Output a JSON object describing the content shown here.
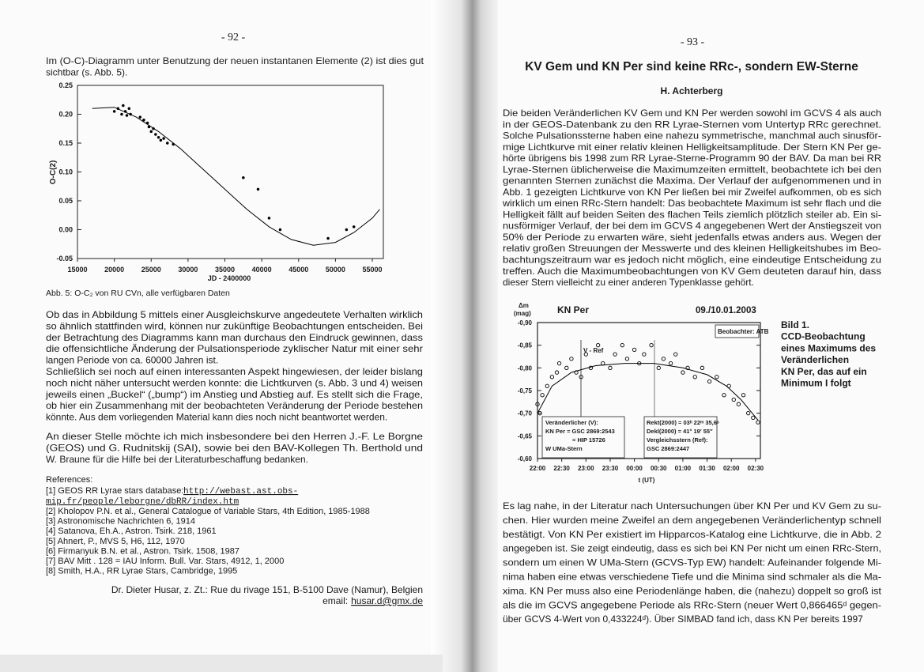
{
  "left_page": {
    "page_number": "- 92 -",
    "intro": [
      "Im (O-C)-Diagramm unter Benutzung der neuen instantanen Elemente (2) ist dies gut",
      "sichtbar (s. Abb. 5)."
    ],
    "figure": {
      "type": "scatter",
      "x_label": "JD - 2400000",
      "y_label": "O-C(2)",
      "xlim": [
        15000,
        56500
      ],
      "ylim": [
        -0.05,
        0.25
      ],
      "xticks": [
        15000,
        20000,
        25000,
        30000,
        35000,
        40000,
        45000,
        50000,
        55000
      ],
      "yticks": [
        0.25,
        {
          "value": 0.2,
          "label": "0.20"
        },
        0.15,
        {
          "value": 0.1,
          "label": "0.10"
        },
        0.05,
        {
          "value": 0,
          "label": "0.00"
        },
        -0.05
      ],
      "points": {
        "x": [
          20000,
          20500,
          21000,
          21200,
          21500,
          21700,
          22000,
          22200,
          23500,
          24000,
          24500,
          24700,
          25000,
          25300,
          25600,
          26000,
          26300,
          26700,
          27200,
          28000,
          37500,
          39500,
          41000,
          42500,
          49000,
          51500,
          52500
        ],
        "y": [
          0.205,
          0.21,
          0.2,
          0.215,
          0.205,
          0.198,
          0.21,
          0.2,
          0.195,
          0.19,
          0.185,
          0.178,
          0.17,
          0.175,
          0.165,
          0.16,
          0.155,
          0.158,
          0.15,
          0.148,
          0.09,
          0.07,
          0.02,
          0,
          -0.015,
          0,
          0.005
        ]
      },
      "curve": {
        "x": [
          17000,
          20000,
          23000,
          26000,
          29000,
          32000,
          35000,
          38000,
          41000,
          44000,
          47000,
          50000,
          52500,
          55000,
          56000
        ],
        "y": [
          0.21,
          0.212,
          0.195,
          0.17,
          0.14,
          0.105,
          0.07,
          0.035,
          0.005,
          -0.017,
          -0.027,
          -0.022,
          -0.005,
          0.02,
          0.035
        ]
      },
      "color": "#000000"
    },
    "caption": "Abb. 5: O-C₂ von RU CVn, alle verfügbaren Daten",
    "paragraphs": [
      [
        "Ob das in Abbildung 5 mittels einer Ausgleichskurve angedeutete Verhalten wirklich",
        "so ähnlich stattfinden wird, können nur zukünftige Beobachtungen entscheiden. Bei",
        "der Betrachtung des Diagramms kann man durchaus den Eindruck gewinnen, dass",
        "die offensichtliche Änderung der Pulsationsperiode zyklischer Natur mit einer sehr",
        "langen Periode von ca. 60000 Jahren ist."
      ],
      [
        "Schließlich sei noch auf einen interessanten Aspekt hingewiesen, der leider bislang",
        "noch nicht näher untersucht werden konnte: die Lichtkurven (s. Abb. 3 und 4) weisen",
        "jeweils einen „Buckel“ („bump“) im Anstieg und Abstieg auf. Es stellt sich die Frage,",
        "ob hier ein Zusammenhang mit der beobachteten Veränderung der Periode bestehen",
        "könnte.  Aus dem vorliegenden Material kann dies noch nicht beantwortet werden."
      ],
      [
        "An dieser Stelle möchte ich mich insbesondere bei den Herren J.-F. Le Borgne",
        "(GEOS) und G. Rudnitskij (SAI), sowie bei den BAV-Kollegen Th. Berthold und",
        "W. Braune für die Hilfe bei der Literaturbeschaffung bedanken."
      ]
    ],
    "references": {
      "heading": "References:",
      "first": {
        "text": "[1] GEOS RR Lyrae stars database: ",
        "link": [
          "http://webast.ast.obs-",
          "mip.fr/people/leborgne/dbRR/index.htm"
        ]
      },
      "items": [
        "[2] Kholopov P.N. et al., General Catalogue of Variable Stars, 4th Edition, 1985-1988",
        "[3] Astronomische Nachrichten 6, 1914",
        "[4] Satanova, Eh.A., Astron. Tsirk. 218, 1961",
        "[5] Ahnert, P., MVS 5, H6, 112, 1970",
        "[6] Firmanyuk B.N. et al., Astron. Tsirk. 1508, 1987",
        "[7] BAV Mitt . 128 = IAU Inform. Bull. Var. Stars, 4912, 1, 2000",
        "[8] Smith, H.A., RR Lyrae Stars, Cambridge, 1995"
      ]
    },
    "address": "Dr. Dieter Husar, z. Zt.: Rue du rivage 151, B-5100 Dave (Namur), Belgien",
    "email_label": "email:",
    "email": "husar.d@gmx.de"
  },
  "right_page": {
    "page_number": "- 93 -",
    "title": "KV Gem und KN Per sind keine RRc-, sondern EW-Sterne",
    "author": "H. Achterberg",
    "paragraph_1": [
      "Die beiden Veränderlichen KV Gem und KN Per werden sowohl im GCVS 4 als auch",
      "in der GEOS-Datenbank zu den RR Lyrae-Sternen vom Untertyp RRc gerechnet.",
      "Solche Pulsationssterne haben eine nahezu symmetrische, manchmal auch sinusför-",
      "mige Lichtkurve mit einer relativ kleinen Helligkeitsamplitude. Der Stern KN Per ge-",
      "hörte übrigens bis 1998 zum RR Lyrae-Sterne-Programm 90 der BAV. Da man bei RR",
      "Lyrae-Sternen üblicherweise die Maximumzeiten ermittelt, beobachtete ich bei den",
      "genannten Sternen zunächst die Maxima. Der Verlauf der aufgenommenen und in",
      "Abb. 1 gezeigten Lichtkurve von KN Per ließen bei mir Zweifel aufkommen, ob es sich",
      "wirklich um einen RRc-Stern handelt: Das beobachtete Maximum ist sehr flach und die",
      "Helligkeit fällt auf beiden Seiten des flachen Teils ziemlich plötzlich steiler ab. Ein si-",
      "nusförmiger Verlauf, der bei dem im GCVS 4 angegebenen Wert der Anstiegszeit von",
      "50% der Periode zu erwarten wäre, sieht jedenfalls etwas anders aus. Wegen der",
      "relativ großen Streuungen der Messwerte und des kleinen Helligkeitshubes im Beo-",
      "bachtungszeitraum war es jedoch nicht möglich, eine eindeutige Entscheidung zu",
      "treffen. Auch die Maximumbeobachtungen von KV Gem deuteten darauf hin, dass",
      "dieser Stern vielleicht zu einer anderen Typenklasse gehört."
    ],
    "figure": {
      "type": "scatter",
      "title": "KN Per",
      "date": "09./10.01.2003",
      "y_label": [
        "Δm",
        "(mag)"
      ],
      "x_label": "t (UT)",
      "observer": "Beobachter: ATB",
      "series_label": "V - Ref",
      "variable": [
        "Veränderlicher (V):",
        "KN Per = GSC 2869:2543",
        "= HIP 15726",
        "W UMa-Stern"
      ],
      "coordinates": [
        "Rekt(2000) = 03ʰ 22ᵐ 35,6ˢ",
        "Dekl(2000) = 41° 19′ 55″",
        "Vergleichsstern (Ref):",
        "GSC 2869:2447"
      ],
      "xlim": [
        22,
        26.6
      ],
      "ylim": [
        -0.9,
        -0.6
      ],
      "y_inverted": true,
      "xticks": [
        {
          "value": 22,
          "label": "22:00"
        },
        {
          "value": 22.5,
          "label": "22:30"
        },
        {
          "value": 23,
          "label": "23:00"
        },
        {
          "value": 23.5,
          "label": "23:30"
        },
        {
          "value": 24,
          "label": "00:00"
        },
        {
          "value": 24.5,
          "label": "00:30"
        },
        {
          "value": 25,
          "label": "01:00"
        },
        {
          "value": 25.5,
          "label": "01:30"
        },
        {
          "value": 26,
          "label": "02:00"
        },
        {
          "value": 26.5,
          "label": "02:30"
        }
      ],
      "yticks": [
        {
          "value": -0.9,
          "label": "-0,90"
        },
        {
          "value": -0.85,
          "label": "-0,85"
        },
        {
          "value": -0.8,
          "label": "-0,80"
        },
        {
          "value": -0.75,
          "label": "-0,75"
        },
        {
          "value": -0.7,
          "label": "-0,70"
        },
        {
          "value": -0.65,
          "label": "-0,65"
        },
        {
          "value": -0.6,
          "label": "-0,60"
        }
      ],
      "points": {
        "x": [
          22.0,
          22.05,
          22.1,
          22.2,
          22.3,
          22.4,
          22.45,
          22.6,
          22.7,
          22.8,
          22.9,
          23.0,
          23.1,
          23.25,
          23.35,
          23.5,
          23.6,
          23.75,
          23.85,
          24.0,
          24.1,
          24.2,
          24.35,
          24.5,
          24.6,
          24.75,
          24.85,
          25.0,
          25.1,
          25.25,
          25.4,
          25.55,
          25.7,
          25.85,
          25.95,
          26.05,
          26.15,
          26.25,
          26.35,
          26.45,
          26.55
        ],
        "y": [
          -0.72,
          -0.7,
          -0.74,
          -0.76,
          -0.78,
          -0.79,
          -0.81,
          -0.8,
          -0.82,
          -0.79,
          -0.78,
          -0.83,
          -0.8,
          -0.85,
          -0.81,
          -0.8,
          -0.83,
          -0.85,
          -0.82,
          -0.84,
          -0.81,
          -0.83,
          -0.85,
          -0.8,
          -0.82,
          -0.81,
          -0.83,
          -0.79,
          -0.8,
          -0.78,
          -0.8,
          -0.77,
          -0.78,
          -0.74,
          -0.76,
          -0.73,
          -0.72,
          -0.74,
          -0.7,
          -0.69,
          -0.68
        ]
      },
      "curve": {
        "x": [
          22.0,
          22.3,
          22.7,
          23.2,
          23.8,
          24.4,
          25.0,
          25.5,
          25.9,
          26.2,
          26.55
        ],
        "y": [
          -0.7,
          -0.76,
          -0.79,
          -0.805,
          -0.81,
          -0.81,
          -0.8,
          -0.785,
          -0.76,
          -0.73,
          -0.685
        ]
      },
      "color": "#000000"
    },
    "side_caption": [
      "Bild 1.",
      "CCD-Beobachtung",
      "eines Maximums des",
      "Veränderlichen",
      "KN Per, das auf ein",
      "Minimum I folgt"
    ],
    "paragraph_2": [
      "Es lag nahe, in der Literatur nach Untersuchungen über KN Per und KV Gem zu su-",
      "chen. Hier wurden meine Zweifel an dem angegebenen Veränderlichentyp schnell",
      "bestätigt. Von KN Per existiert im Hipparcos-Katalog eine Lichtkurve, die in Abb. 2",
      "angegeben ist. Sie zeigt eindeutig, dass es sich bei KN Per nicht um einen RRc-Stern,",
      "sondern um einen W UMa-Stern (GCVS-Typ EW) handelt: Aufeinander folgende Mi-",
      "nima haben eine etwas verschiedene Tiefe und die Minima sind schmaler als die Ma-",
      "xima. KN Per muss also eine Periodenlänge haben, die (nahezu) doppelt so groß ist",
      "als die im GCVS angegebene Periode als RRc-Stern (neuer Wert 0,866465ᵈ gegen-",
      "über GCVS 4-Wert von 0,433224ᵈ). Über SIMBAD fand ich, dass KN Per bereits 1997"
    ]
  }
}
